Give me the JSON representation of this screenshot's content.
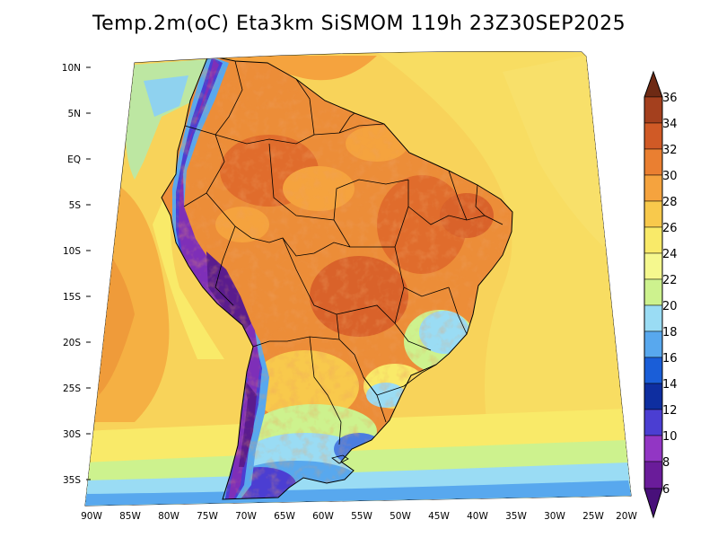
{
  "title": "Temp.2m(oC) Eta3km SiSMOM 119h 23Z30SEP2025",
  "colors": {
    "ocean_warm": "#f6c24a",
    "ocean_cool": "#f8d85a",
    "land_hot": "#ec8d38",
    "land_very_hot": "#d9622a",
    "andes_cold": "#6a2aa8",
    "andes_mid": "#3f67d6",
    "south_cool": "#7ec8f0"
  },
  "lat_labels": [
    "10N",
    "5N",
    "EQ",
    "5S",
    "10S",
    "15S",
    "20S",
    "25S",
    "30S",
    "35S"
  ],
  "lon_labels": [
    "90W",
    "85W",
    "80W",
    "75W",
    "70W",
    "65W",
    "60W",
    "55W",
    "50W",
    "45W",
    "40W",
    "35W",
    "30W",
    "25W",
    "20W"
  ],
  "colorbar": {
    "levels": [
      "36",
      "34",
      "32",
      "30",
      "28",
      "26",
      "24",
      "22",
      "20",
      "18",
      "16",
      "14",
      "12",
      "10",
      "8",
      "6"
    ],
    "bins": [
      {
        "color": "#6e2a14"
      },
      {
        "color": "#a4401e"
      },
      {
        "color": "#d05a26"
      },
      {
        "color": "#ea7f31"
      },
      {
        "color": "#f5a33e"
      },
      {
        "color": "#f8c94c"
      },
      {
        "color": "#f9ea69"
      },
      {
        "color": "#f5f88e"
      },
      {
        "color": "#cdf28e"
      },
      {
        "color": "#9adcf4"
      },
      {
        "color": "#58a8ee"
      },
      {
        "color": "#1a5ed8"
      },
      {
        "color": "#0e2ea0"
      },
      {
        "color": "#4b3ed2"
      },
      {
        "color": "#9236c4"
      },
      {
        "color": "#6a1c9a"
      },
      {
        "color": "#48107a"
      }
    ]
  }
}
